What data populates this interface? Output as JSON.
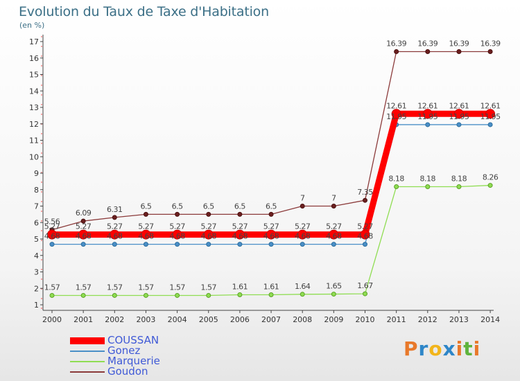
{
  "header": {
    "title": "Evolution du Taux de Taxe d'Habitation",
    "unit": "(en %)"
  },
  "logo": {
    "text": "Proxiti",
    "colors": [
      "#e8792b",
      "#2e86c8",
      "#f2b51b",
      "#2e86c8",
      "#e8792b",
      "#5fb43d",
      "#e8792b"
    ]
  },
  "chart_data": {
    "type": "line",
    "title": "Evolution du Taux de Taxe d'Habitation",
    "ylabel": "(en %)",
    "xlabel": "",
    "ylim": [
      1,
      17
    ],
    "yticks": [
      1,
      2,
      3,
      4,
      5,
      6,
      7,
      8,
      9,
      10,
      11,
      12,
      13,
      14,
      15,
      16,
      17
    ],
    "grid": false,
    "legend_position": "bottom-left",
    "x": [
      "2000",
      "2001",
      "2002",
      "2003",
      "2004",
      "2005",
      "2006",
      "2007",
      "2008",
      "2009",
      "2010",
      "2011",
      "2012",
      "2013",
      "2014"
    ],
    "series": [
      {
        "name": "COUSSAN",
        "color": "#ff0000",
        "values": [
          5.27,
          5.27,
          5.27,
          5.27,
          5.27,
          5.27,
          5.27,
          5.27,
          5.27,
          5.27,
          5.27,
          12.61,
          12.61,
          12.61,
          12.61
        ],
        "labels": [
          "5.27",
          "5.27",
          "5.27",
          "5.27",
          "5.27",
          "5.27",
          "5.27",
          "5.27",
          "5.27",
          "5.27",
          "5.27",
          "12.61",
          "12.61",
          "12.61",
          "12.61"
        ]
      },
      {
        "name": "Gonez",
        "color": "#4a8fc7",
        "values": [
          4.68,
          4.68,
          4.68,
          4.68,
          4.68,
          4.68,
          4.68,
          4.68,
          4.68,
          4.68,
          4.68,
          11.95,
          11.95,
          11.95,
          11.95
        ],
        "labels": [
          "4.68",
          "4.68",
          "4.68",
          "4.68",
          "4.68",
          "4.68",
          "4.68",
          "4.68",
          "4.68",
          "4.68",
          "4.68",
          "11.95",
          "11.95",
          "11.95",
          "11.95"
        ]
      },
      {
        "name": "Marquerie",
        "color": "#8fdd52",
        "values": [
          1.57,
          1.57,
          1.57,
          1.57,
          1.57,
          1.57,
          1.61,
          1.61,
          1.64,
          1.65,
          1.67,
          8.18,
          8.18,
          8.18,
          8.26
        ],
        "labels": [
          "1.57",
          "1.57",
          "1.57",
          "1.57",
          "1.57",
          "1.57",
          "1.61",
          "1.61",
          "1.64",
          "1.65",
          "1.67",
          "8.18",
          "8.18",
          "8.18",
          "8.26"
        ]
      },
      {
        "name": "Goudon",
        "color": "#8b3a3a",
        "values": [
          5.56,
          6.09,
          6.31,
          6.5,
          6.5,
          6.5,
          6.5,
          6.5,
          7,
          7,
          7.35,
          16.39,
          16.39,
          16.39,
          16.39
        ],
        "labels": [
          "5.56",
          "6.09",
          "6.31",
          "6.5",
          "6.5",
          "6.5",
          "6.5",
          "6.5",
          "7",
          "7",
          "7.35",
          "16.39",
          "16.39",
          "16.39",
          "16.39"
        ]
      }
    ]
  }
}
